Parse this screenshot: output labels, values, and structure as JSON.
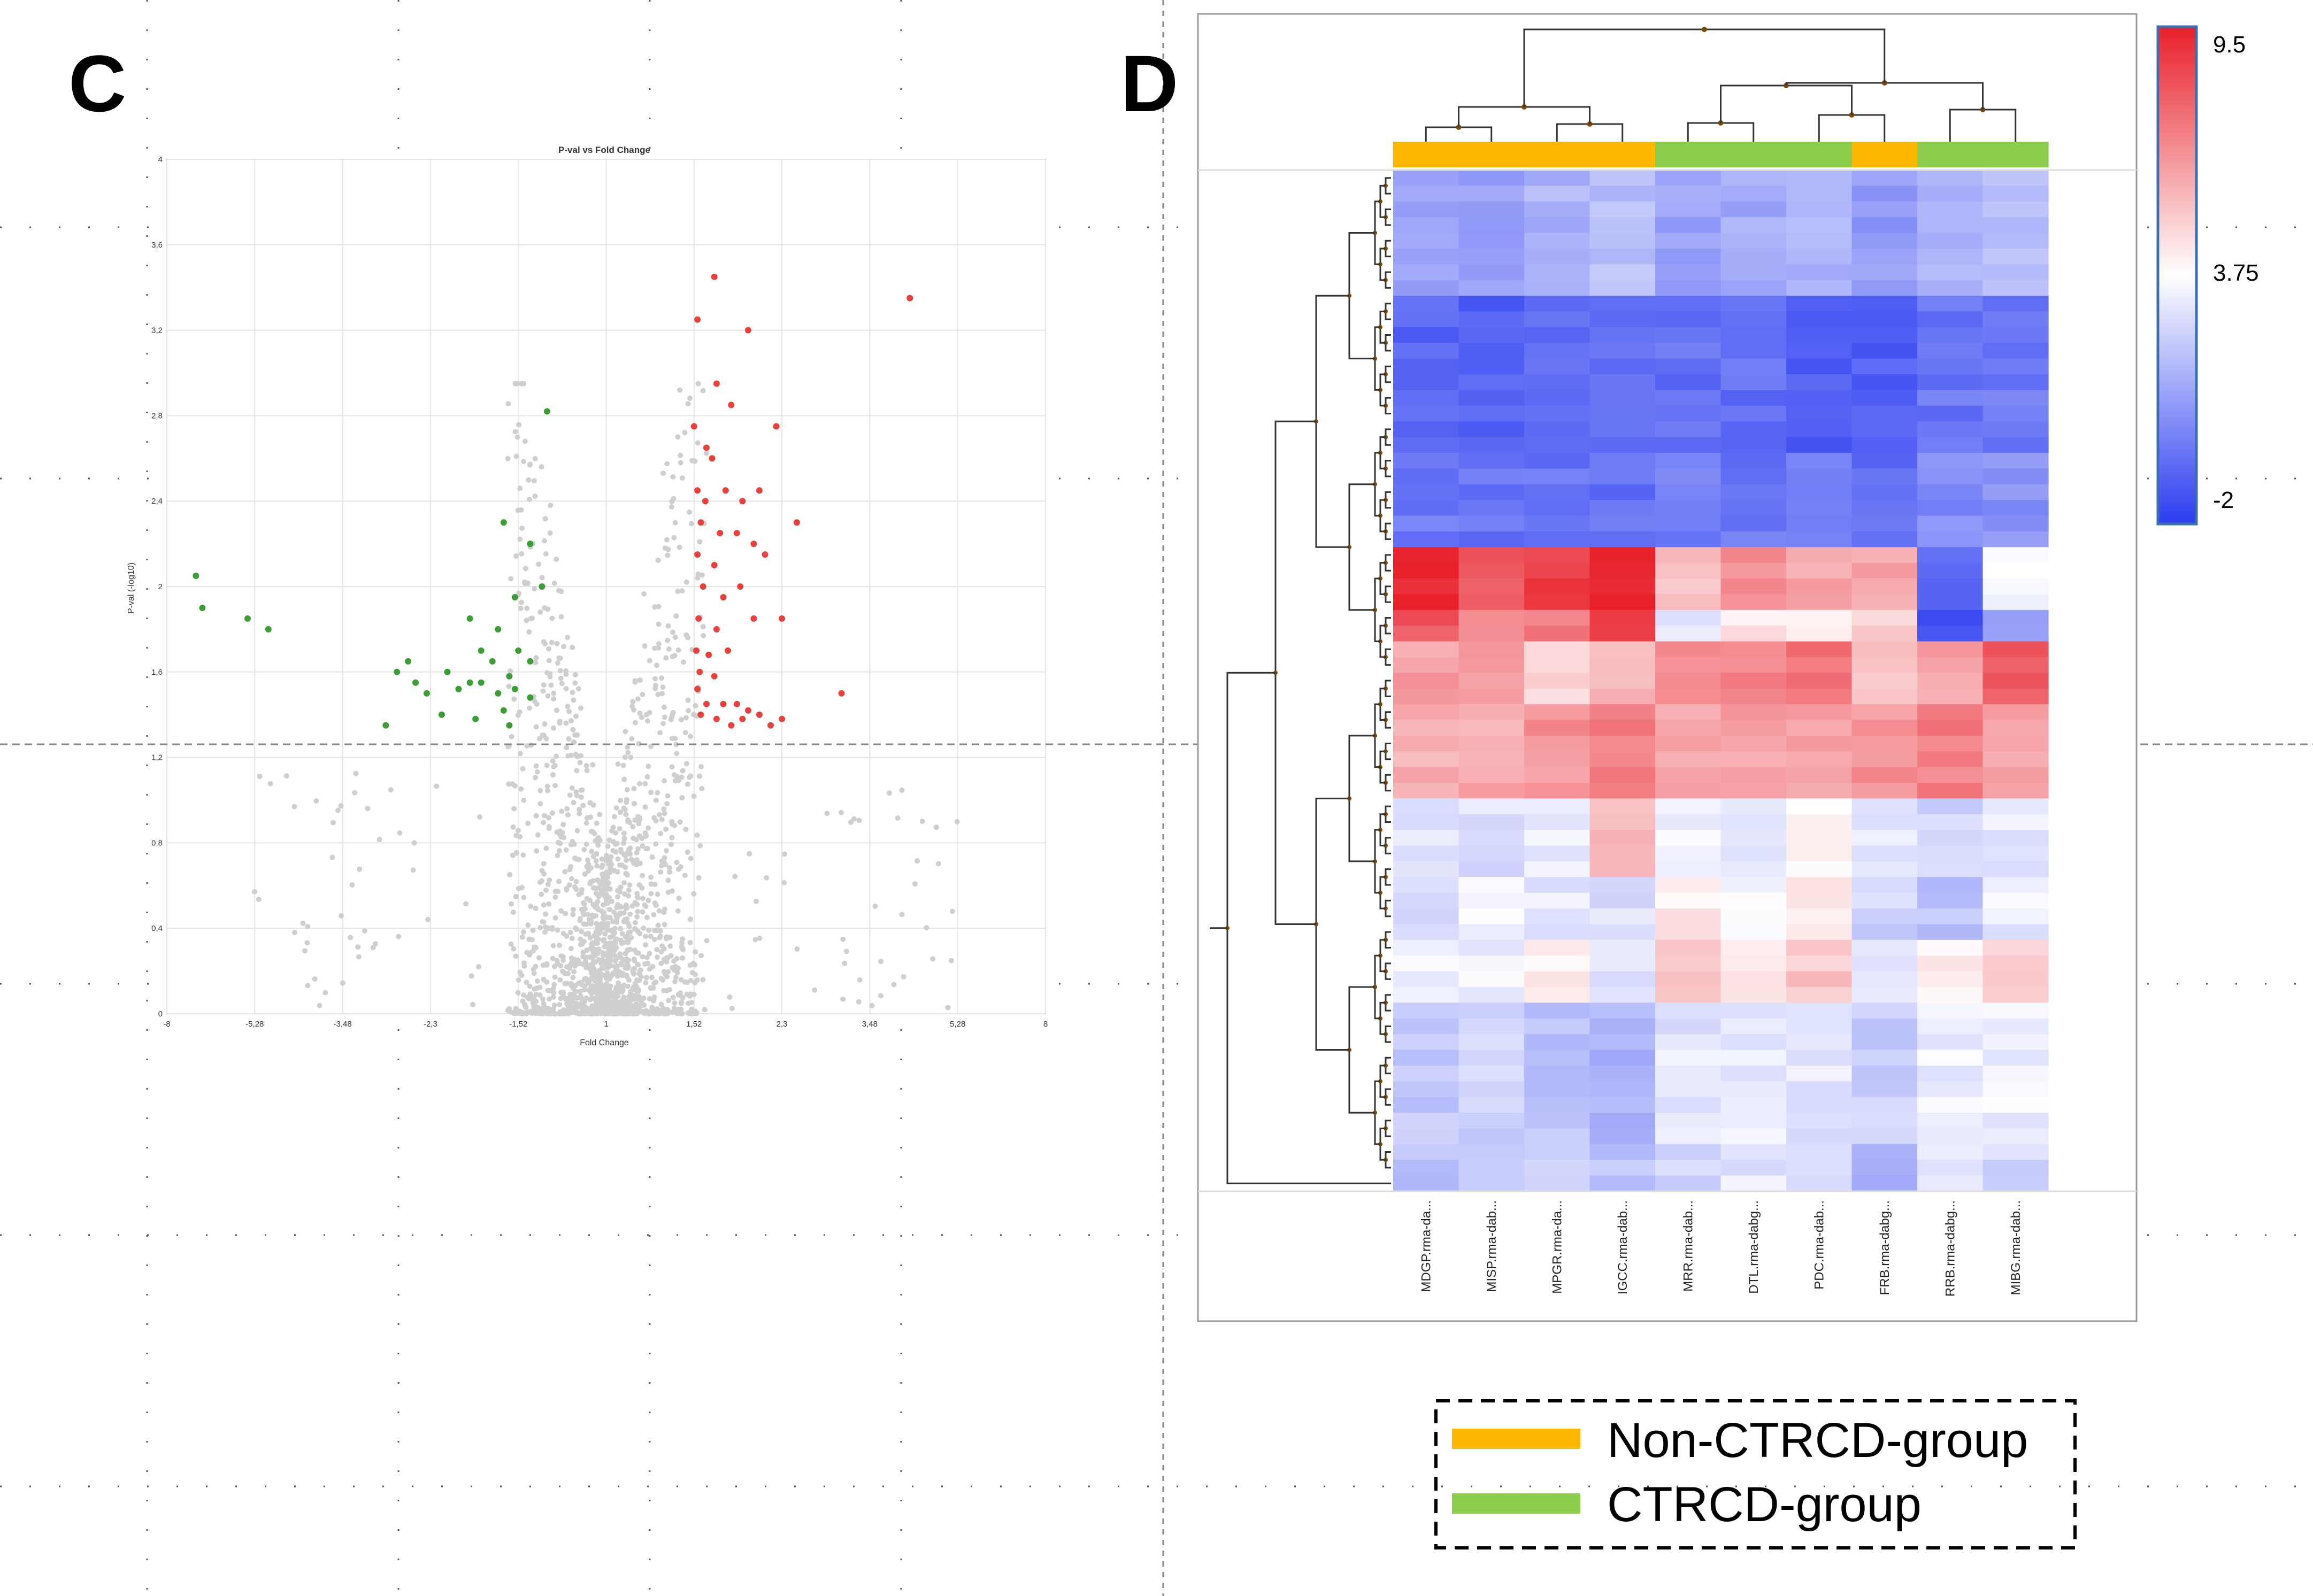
{
  "panels": {
    "c_label": "C",
    "d_label": "D"
  },
  "chart_data": [
    {
      "type": "scatter",
      "title": "P-val vs Fold Change",
      "xlabel": "Fold Change",
      "ylabel": "P-val (-log10)",
      "x_ticks": [
        "-8",
        "-5,28",
        "-3,48",
        "-2,3",
        "-1,52",
        "1",
        "1,52",
        "2,3",
        "3,48",
        "5,28",
        "8"
      ],
      "y_ticks": [
        "0",
        "0,4",
        "0,8",
        "1,2",
        "1,6",
        "2",
        "2,4",
        "2,8",
        "3,2",
        "3,6",
        "4"
      ],
      "ylim": [
        0,
        4
      ],
      "threshold_y": 1.3,
      "grid": true,
      "colors": {
        "up": "#e8413c",
        "down": "#3a9e35",
        "ns": "#cfcfcf"
      },
      "series": [
        {
          "role": "up",
          "points": [
            [
              1.7,
              3.45
            ],
            [
              1.55,
              3.25
            ],
            [
              2.0,
              3.2
            ],
            [
              1.72,
              2.95
            ],
            [
              1.52,
              2.75
            ],
            [
              1.85,
              2.85
            ],
            [
              2.25,
              2.75
            ],
            [
              1.63,
              2.65
            ],
            [
              1.68,
              2.6
            ],
            [
              1.55,
              2.45
            ],
            [
              1.62,
              2.4
            ],
            [
              1.8,
              2.45
            ],
            [
              1.95,
              2.4
            ],
            [
              2.1,
              2.45
            ],
            [
              1.58,
              2.3
            ],
            [
              1.75,
              2.25
            ],
            [
              1.9,
              2.25
            ],
            [
              2.05,
              2.2
            ],
            [
              2.5,
              2.3
            ],
            [
              1.55,
              2.15
            ],
            [
              1.7,
              2.1
            ],
            [
              2.15,
              2.15
            ],
            [
              1.6,
              2.0
            ],
            [
              1.78,
              1.95
            ],
            [
              1.93,
              2.0
            ],
            [
              1.56,
              1.85
            ],
            [
              1.72,
              1.8
            ],
            [
              2.05,
              1.85
            ],
            [
              2.3,
              1.85
            ],
            [
              1.54,
              1.7
            ],
            [
              1.65,
              1.68
            ],
            [
              1.82,
              1.7
            ],
            [
              1.57,
              1.6
            ],
            [
              1.7,
              1.58
            ],
            [
              1.55,
              1.52
            ],
            [
              1.63,
              1.45
            ],
            [
              1.78,
              1.45
            ],
            [
              1.9,
              1.45
            ],
            [
              2.0,
              1.42
            ],
            [
              1.58,
              1.4
            ],
            [
              1.72,
              1.38
            ],
            [
              1.85,
              1.35
            ],
            [
              1.95,
              1.38
            ],
            [
              2.1,
              1.4
            ],
            [
              2.2,
              1.35
            ],
            [
              2.3,
              1.38
            ],
            [
              3.1,
              1.5
            ],
            [
              4.3,
              3.35
            ]
          ]
        },
        {
          "role": "down",
          "points": [
            [
              -1.35,
              2.82
            ],
            [
              -1.65,
              2.3
            ],
            [
              -1.45,
              2.2
            ],
            [
              -1.38,
              2.0
            ],
            [
              -1.55,
              1.95
            ],
            [
              -1.95,
              1.85
            ],
            [
              -1.7,
              1.8
            ],
            [
              -1.85,
              1.7
            ],
            [
              -1.52,
              1.7
            ],
            [
              -2.6,
              1.65
            ],
            [
              -1.75,
              1.65
            ],
            [
              -1.45,
              1.65
            ],
            [
              -2.75,
              1.6
            ],
            [
              -2.15,
              1.6
            ],
            [
              -1.95,
              1.55
            ],
            [
              -1.6,
              1.58
            ],
            [
              -2.5,
              1.55
            ],
            [
              -1.85,
              1.55
            ],
            [
              -1.55,
              1.52
            ],
            [
              -2.35,
              1.5
            ],
            [
              -2.05,
              1.52
            ],
            [
              -1.7,
              1.5
            ],
            [
              -1.45,
              1.48
            ],
            [
              -1.65,
              1.42
            ],
            [
              -2.2,
              1.4
            ],
            [
              -1.9,
              1.38
            ],
            [
              -2.9,
              1.35
            ],
            [
              -1.6,
              1.35
            ],
            [
              -7.1,
              2.05
            ],
            [
              -6.9,
              1.9
            ],
            [
              -5.5,
              1.85
            ],
            [
              -5.0,
              1.8
            ]
          ]
        }
      ]
    },
    {
      "type": "heatmap",
      "columns": [
        "MDGP.rma-da...",
        "MISP.rma-dab...",
        "MPGR.rma-da...",
        "IGCC.rma-dab...",
        "MRR.rma-dab...",
        "DTL.rma-dabg...",
        "PDC.rma-dab...",
        "FRB.rma-dabg...",
        "RRB.rma-dabg...",
        "MIBG.rma-dab..."
      ],
      "column_groups": [
        "Non-CTRCD-group",
        "Non-CTRCD-group",
        "Non-CTRCD-group",
        "Non-CTRCD-group",
        "CTRCD-group",
        "CTRCD-group",
        "CTRCD-group",
        "Non-CTRCD-group",
        "CTRCD-group",
        "CTRCD-group"
      ],
      "colorbar": {
        "min_label": "-2",
        "mid_label": "3.75",
        "max_label": "9.5",
        "min": -2,
        "mid": 3.75,
        "max": 9.5
      },
      "colors": {
        "low": "#2b3df0",
        "mid": "#ffffff",
        "high": "#e8202a",
        "non_ctrcd": "#ffb800",
        "ctrcd": "#8ccd4e",
        "dendrogram": "#7a4a0a"
      },
      "row_blocks": [
        {
          "rows": 8,
          "values": [
            1.2,
            1.0,
            1.5,
            1.8,
            1.0,
            1.3,
            1.6,
            0.8,
            1.5,
            1.8
          ]
        },
        {
          "rows": 10,
          "values": [
            -0.8,
            -0.9,
            -0.7,
            -0.6,
            -0.4,
            -0.5,
            -0.9,
            -1.0,
            -0.3,
            -0.2
          ]
        },
        {
          "rows": 6,
          "values": [
            -0.2,
            -0.4,
            -0.3,
            -0.5,
            0.0,
            -0.2,
            0.3,
            -0.6,
            0.3,
            0.5
          ]
        },
        {
          "rows": 4,
          "values": [
            9.2,
            8.0,
            8.6,
            9.5,
            5.5,
            6.5,
            6.0,
            6.0,
            -0.5,
            3.4
          ]
        },
        {
          "rows": 2,
          "values": [
            8.0,
            6.5,
            7.0,
            8.5,
            3.0,
            4.5,
            4.2,
            5.0,
            -1.5,
            1.0
          ]
        },
        {
          "rows": 4,
          "values": [
            6.2,
            6.0,
            5.0,
            5.5,
            7.0,
            7.0,
            7.5,
            5.5,
            6.2,
            8.0
          ]
        },
        {
          "rows": 6,
          "values": [
            5.8,
            6.0,
            6.5,
            7.2,
            6.0,
            6.2,
            6.0,
            6.5,
            7.0,
            6.3
          ]
        },
        {
          "rows": 5,
          "values": [
            3.0,
            2.8,
            3.2,
            5.5,
            3.5,
            3.2,
            3.8,
            3.0,
            2.5,
            3.0
          ]
        },
        {
          "rows": 4,
          "values": [
            2.8,
            3.5,
            3.0,
            2.8,
            4.2,
            3.6,
            4.5,
            2.5,
            2.0,
            3.2
          ]
        },
        {
          "rows": 4,
          "values": [
            3.4,
            3.3,
            4.3,
            2.8,
            5.0,
            4.5,
            5.2,
            3.3,
            4.0,
            4.8
          ]
        },
        {
          "rows": 9,
          "values": [
            2.2,
            2.5,
            2.0,
            1.5,
            3.0,
            3.2,
            3.0,
            2.3,
            3.3,
            3.3
          ]
        },
        {
          "rows": 3,
          "values": [
            1.8,
            2.2,
            2.3,
            2.0,
            2.4,
            3.0,
            2.8,
            1.6,
            3.2,
            2.6
          ]
        }
      ]
    }
  ],
  "legend": {
    "items": [
      {
        "label": "Non-CTRCD-group",
        "color": "#ffb800"
      },
      {
        "label": "CTRCD-group",
        "color": "#8ccd4e"
      }
    ]
  }
}
